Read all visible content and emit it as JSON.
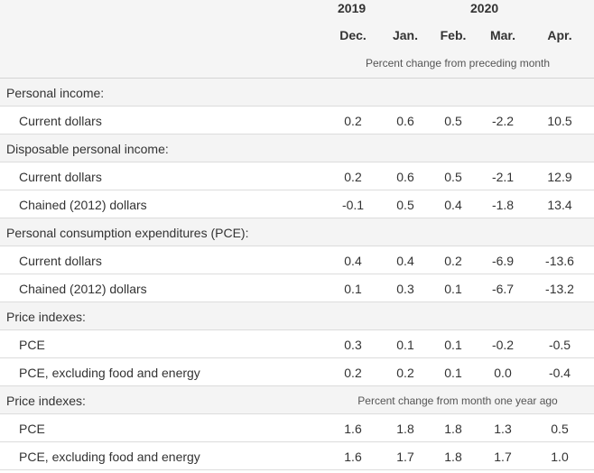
{
  "header": {
    "year_2019": "2019",
    "year_2020": "2020",
    "months": [
      "Dec.",
      "Jan.",
      "Feb.",
      "Mar.",
      "Apr."
    ],
    "note_monthly": "Percent change from preceding month"
  },
  "rows": [
    {
      "type": "section",
      "label": "Personal income:"
    },
    {
      "type": "item",
      "label": "Current dollars",
      "values": [
        "0.2",
        "0.6",
        "0.5",
        "-2.2",
        "10.5"
      ]
    },
    {
      "type": "section",
      "label": "Disposable personal income:"
    },
    {
      "type": "item",
      "label": "Current dollars",
      "values": [
        "0.2",
        "0.6",
        "0.5",
        "-2.1",
        "12.9"
      ]
    },
    {
      "type": "item",
      "label": "Chained (2012) dollars",
      "values": [
        "-0.1",
        "0.5",
        "0.4",
        "-1.8",
        "13.4"
      ]
    },
    {
      "type": "section",
      "label": "Personal consumption expenditures (PCE):"
    },
    {
      "type": "item",
      "label": "Current dollars",
      "values": [
        "0.4",
        "0.4",
        "0.2",
        "-6.9",
        "-13.6"
      ]
    },
    {
      "type": "item",
      "label": "Chained (2012) dollars",
      "values": [
        "0.1",
        "0.3",
        "0.1",
        "-6.7",
        "-13.2"
      ]
    },
    {
      "type": "section",
      "label": "Price indexes:"
    },
    {
      "type": "item",
      "label": "PCE",
      "values": [
        "0.3",
        "0.1",
        "0.1",
        "-0.2",
        "-0.5"
      ]
    },
    {
      "type": "item",
      "label": "PCE, excluding food and energy",
      "values": [
        "0.2",
        "0.2",
        "0.1",
        "0.0",
        "-0.4"
      ]
    },
    {
      "type": "section",
      "label": "Price indexes:",
      "note": "Percent change from month one year ago"
    },
    {
      "type": "item",
      "label": "PCE",
      "values": [
        "1.6",
        "1.8",
        "1.8",
        "1.3",
        "0.5"
      ]
    },
    {
      "type": "item",
      "label": "PCE, excluding food and energy",
      "values": [
        "1.6",
        "1.7",
        "1.8",
        "1.7",
        "1.0"
      ]
    }
  ],
  "colors": {
    "accent_bar": "#e8603c",
    "header_bg": "#f5f5f5",
    "section_bg": "#f4f4f4"
  }
}
